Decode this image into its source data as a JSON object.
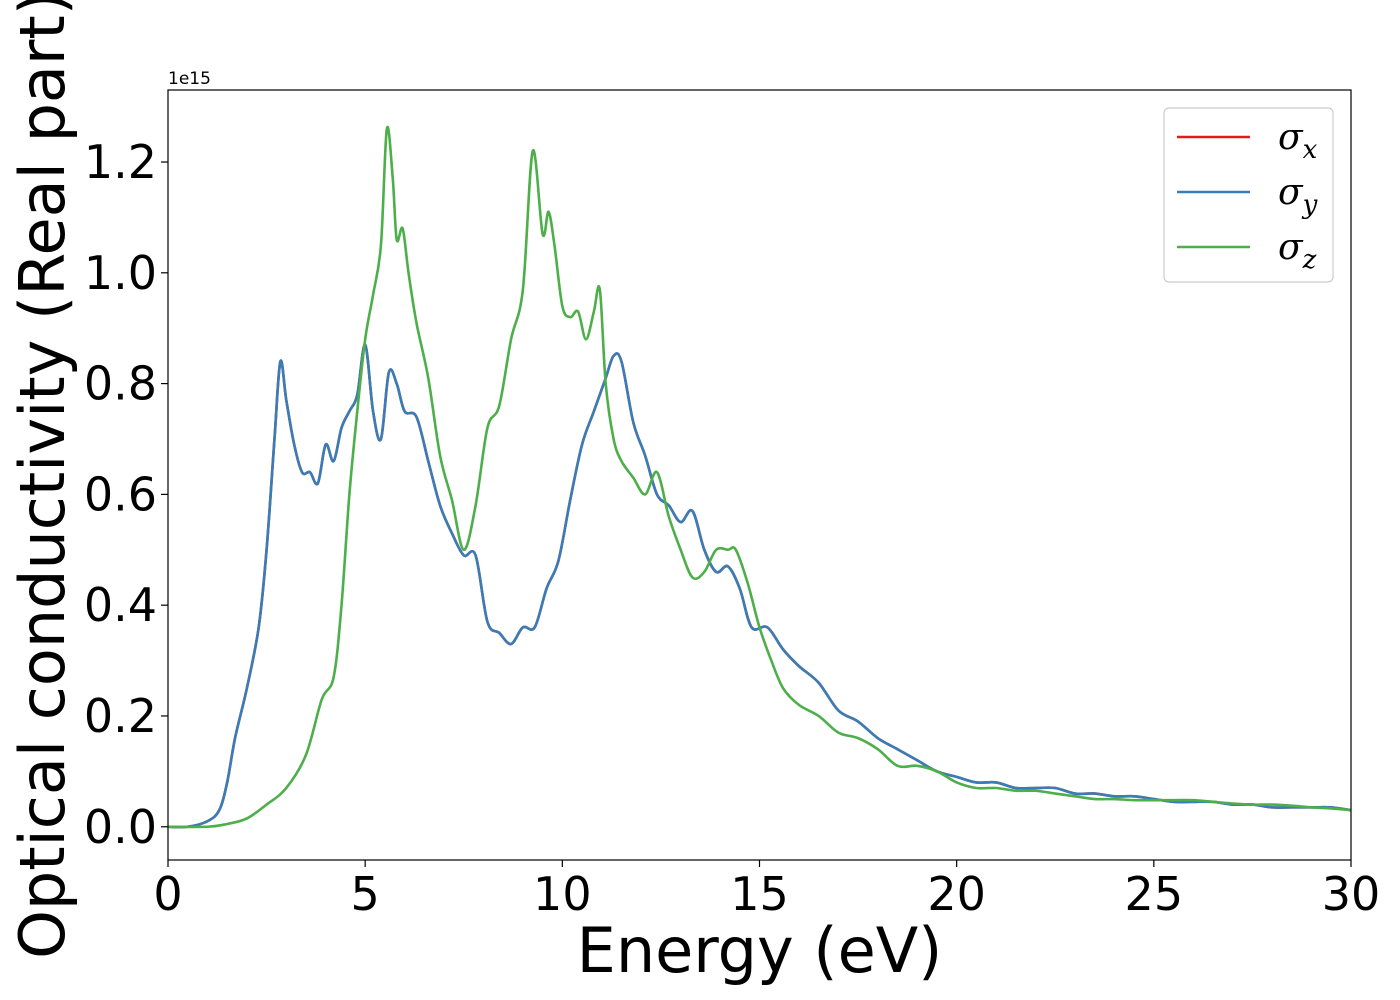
{
  "chart_data": {
    "type": "line",
    "xlabel": "Energy (eV)",
    "ylabel": "Optical conductivity (Real part)",
    "y_offset_label": "1e15",
    "xlim": [
      0,
      30
    ],
    "ylim": [
      -0.06,
      1.33
    ],
    "xticks": [
      0,
      5,
      10,
      15,
      20,
      25,
      30
    ],
    "xtick_labels": [
      "0",
      "5",
      "10",
      "15",
      "20",
      "25",
      "30"
    ],
    "yticks": [
      0.0,
      0.2,
      0.4,
      0.6,
      0.8,
      1.0,
      1.2
    ],
    "ytick_labels": [
      "0.0",
      "0.2",
      "0.4",
      "0.6",
      "0.8",
      "1.0",
      "1.2"
    ],
    "grid": false,
    "legend_position": "top-right",
    "series": [
      {
        "name": "σx",
        "symbol": "σ",
        "subscript": "x",
        "color": "#e41a1c",
        "x": [
          0,
          0.5,
          1.0,
          1.3,
          1.5,
          1.7,
          2.0,
          2.3,
          2.5,
          2.7,
          2.85,
          3.0,
          3.2,
          3.4,
          3.6,
          3.8,
          4.0,
          4.2,
          4.4,
          4.6,
          4.8,
          5.0,
          5.2,
          5.4,
          5.6,
          5.8,
          6.0,
          6.3,
          6.6,
          6.9,
          7.2,
          7.5,
          7.8,
          8.1,
          8.4,
          8.7,
          9.0,
          9.3,
          9.6,
          9.9,
          10.2,
          10.5,
          10.8,
          11.1,
          11.3,
          11.5,
          11.8,
          12.1,
          12.4,
          12.7,
          13.0,
          13.3,
          13.6,
          13.9,
          14.2,
          14.5,
          14.8,
          15.2,
          15.6,
          16.0,
          16.5,
          17.0,
          17.5,
          18.0,
          18.5,
          19.0,
          19.5,
          20.0,
          20.5,
          21.0,
          21.5,
          22.0,
          22.5,
          23.0,
          23.5,
          24.0,
          24.5,
          25.0,
          25.5,
          26.0,
          26.5,
          27.0,
          27.5,
          28.0,
          28.5,
          29.0,
          29.5,
          30.0
        ],
        "values": [
          0.0,
          0.0,
          0.01,
          0.03,
          0.08,
          0.16,
          0.25,
          0.36,
          0.5,
          0.7,
          0.84,
          0.77,
          0.69,
          0.64,
          0.64,
          0.62,
          0.69,
          0.66,
          0.72,
          0.75,
          0.78,
          0.87,
          0.75,
          0.7,
          0.82,
          0.8,
          0.75,
          0.74,
          0.66,
          0.58,
          0.53,
          0.49,
          0.49,
          0.37,
          0.35,
          0.33,
          0.36,
          0.36,
          0.43,
          0.48,
          0.59,
          0.69,
          0.75,
          0.81,
          0.85,
          0.84,
          0.73,
          0.67,
          0.6,
          0.58,
          0.55,
          0.57,
          0.5,
          0.46,
          0.47,
          0.43,
          0.36,
          0.36,
          0.32,
          0.29,
          0.26,
          0.21,
          0.19,
          0.16,
          0.14,
          0.12,
          0.1,
          0.09,
          0.08,
          0.08,
          0.07,
          0.07,
          0.07,
          0.06,
          0.06,
          0.055,
          0.055,
          0.05,
          0.045,
          0.045,
          0.045,
          0.04,
          0.04,
          0.035,
          0.035,
          0.035,
          0.035,
          0.03
        ]
      },
      {
        "name": "σy",
        "symbol": "σ",
        "subscript": "y",
        "color": "#377eb8",
        "x": [
          0,
          0.5,
          1.0,
          1.3,
          1.5,
          1.7,
          2.0,
          2.3,
          2.5,
          2.7,
          2.85,
          3.0,
          3.2,
          3.4,
          3.6,
          3.8,
          4.0,
          4.2,
          4.4,
          4.6,
          4.8,
          5.0,
          5.2,
          5.4,
          5.6,
          5.8,
          6.0,
          6.3,
          6.6,
          6.9,
          7.2,
          7.5,
          7.8,
          8.1,
          8.4,
          8.7,
          9.0,
          9.3,
          9.6,
          9.9,
          10.2,
          10.5,
          10.8,
          11.1,
          11.3,
          11.5,
          11.8,
          12.1,
          12.4,
          12.7,
          13.0,
          13.3,
          13.6,
          13.9,
          14.2,
          14.5,
          14.8,
          15.2,
          15.6,
          16.0,
          16.5,
          17.0,
          17.5,
          18.0,
          18.5,
          19.0,
          19.5,
          20.0,
          20.5,
          21.0,
          21.5,
          22.0,
          22.5,
          23.0,
          23.5,
          24.0,
          24.5,
          25.0,
          25.5,
          26.0,
          26.5,
          27.0,
          27.5,
          28.0,
          28.5,
          29.0,
          29.5,
          30.0
        ],
        "values": [
          0.0,
          0.0,
          0.01,
          0.03,
          0.08,
          0.16,
          0.25,
          0.36,
          0.5,
          0.7,
          0.84,
          0.77,
          0.69,
          0.64,
          0.64,
          0.62,
          0.69,
          0.66,
          0.72,
          0.75,
          0.78,
          0.87,
          0.75,
          0.7,
          0.82,
          0.8,
          0.75,
          0.74,
          0.66,
          0.58,
          0.53,
          0.49,
          0.49,
          0.37,
          0.35,
          0.33,
          0.36,
          0.36,
          0.43,
          0.48,
          0.59,
          0.69,
          0.75,
          0.81,
          0.85,
          0.84,
          0.73,
          0.67,
          0.6,
          0.58,
          0.55,
          0.57,
          0.5,
          0.46,
          0.47,
          0.43,
          0.36,
          0.36,
          0.32,
          0.29,
          0.26,
          0.21,
          0.19,
          0.16,
          0.14,
          0.12,
          0.1,
          0.09,
          0.08,
          0.08,
          0.07,
          0.07,
          0.07,
          0.06,
          0.06,
          0.055,
          0.055,
          0.05,
          0.045,
          0.045,
          0.045,
          0.04,
          0.04,
          0.035,
          0.035,
          0.035,
          0.035,
          0.03
        ]
      },
      {
        "name": "σz",
        "symbol": "σ",
        "subscript": "z",
        "color": "#4daf4a",
        "x": [
          0,
          1.0,
          1.5,
          2.0,
          2.5,
          3.0,
          3.5,
          3.9,
          4.2,
          4.4,
          4.6,
          4.8,
          5.0,
          5.2,
          5.4,
          5.55,
          5.7,
          5.8,
          5.95,
          6.1,
          6.3,
          6.6,
          6.9,
          7.2,
          7.5,
          7.8,
          8.1,
          8.4,
          8.7,
          9.0,
          9.25,
          9.5,
          9.65,
          9.8,
          10.0,
          10.2,
          10.4,
          10.6,
          10.8,
          10.95,
          11.1,
          11.3,
          11.5,
          11.8,
          12.1,
          12.4,
          12.7,
          13.0,
          13.3,
          13.6,
          13.9,
          14.2,
          14.4,
          14.7,
          15.0,
          15.3,
          15.6,
          16.0,
          16.5,
          17.0,
          17.5,
          18.0,
          18.5,
          19.0,
          19.5,
          20.0,
          20.5,
          21.0,
          21.5,
          22.0,
          22.5,
          23.0,
          23.5,
          24.0,
          24.5,
          25.0,
          25.5,
          26.0,
          26.5,
          27.0,
          27.5,
          28.0,
          28.5,
          29.0,
          29.5,
          30.0
        ],
        "values": [
          0.0,
          0.0,
          0.005,
          0.015,
          0.04,
          0.07,
          0.13,
          0.23,
          0.27,
          0.4,
          0.6,
          0.75,
          0.88,
          0.96,
          1.05,
          1.26,
          1.17,
          1.06,
          1.08,
          1.0,
          0.91,
          0.81,
          0.67,
          0.59,
          0.5,
          0.58,
          0.72,
          0.76,
          0.88,
          0.97,
          1.22,
          1.07,
          1.11,
          1.05,
          0.94,
          0.92,
          0.93,
          0.88,
          0.93,
          0.97,
          0.8,
          0.7,
          0.66,
          0.63,
          0.6,
          0.64,
          0.56,
          0.5,
          0.45,
          0.46,
          0.5,
          0.5,
          0.5,
          0.44,
          0.36,
          0.3,
          0.25,
          0.22,
          0.2,
          0.17,
          0.16,
          0.14,
          0.11,
          0.11,
          0.1,
          0.08,
          0.07,
          0.07,
          0.065,
          0.065,
          0.06,
          0.055,
          0.05,
          0.05,
          0.048,
          0.048,
          0.048,
          0.048,
          0.045,
          0.042,
          0.04,
          0.04,
          0.038,
          0.035,
          0.033,
          0.03
        ]
      }
    ]
  }
}
